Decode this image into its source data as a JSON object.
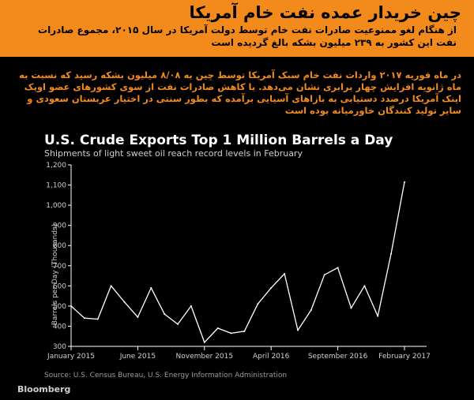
{
  "header": {
    "title": "چین خریدار عمده نفت خام آمریکا",
    "subtitle": "از هنگام لغو ممنوعیت صادرات نفت خام توسط دولت آمریکا در سال ۲۰۱۵، مجموع صادرات نفت این  کشور به ۲۳۹ میلیون بشکه بالغ گردیده است"
  },
  "description": "در ماه فوریه ۲۰۱۷ واردات نفت خام سبک آمریکا توسط چین  به ۸/۰۸ میلیون بشکه رسید که نسبت به ماه ژانویه افزایش چهار برابری نشان می‌دهد. با کاهش صادرات نفت از سوی کشورهای عضو اوپک اینک آمریکا درصدد دستیابی به بازاهای آسیایی برآمده که بطور سنتی در اختیار عربستان سعودی و سایر تولید کنندگان خاورمیانه بوده است",
  "chart_data": {
    "type": "line",
    "title": "U.S. Crude Exports Top 1 Million Barrels a Day",
    "subtitle": "Shipments of light sweet oil reach record levels in February",
    "ylabel": "Barrels per Day (Thousands)",
    "xlabel": "",
    "ylim": [
      300,
      1200
    ],
    "yticks": [
      300,
      400,
      500,
      600,
      700,
      800,
      900,
      "1,000",
      "1,100",
      "1,200"
    ],
    "xticks": [
      {
        "label": "January 2015",
        "index": 0
      },
      {
        "label": "June 2015",
        "index": 5
      },
      {
        "label": "November 2015",
        "index": 10
      },
      {
        "label": "April 2016",
        "index": 15
      },
      {
        "label": "September 2016",
        "index": 20
      },
      {
        "label": "February 2017",
        "index": 25
      }
    ],
    "x": [
      "Jan 2015",
      "Feb 2015",
      "Mar 2015",
      "Apr 2015",
      "May 2015",
      "Jun 2015",
      "Jul 2015",
      "Aug 2015",
      "Sep 2015",
      "Oct 2015",
      "Nov 2015",
      "Dec 2015",
      "Jan 2016",
      "Feb 2016",
      "Mar 2016",
      "Apr 2016",
      "May 2016",
      "Jun 2016",
      "Jul 2016",
      "Aug 2016",
      "Sep 2016",
      "Oct 2016",
      "Nov 2016",
      "Dec 2016",
      "Jan 2017",
      "Feb 2017"
    ],
    "values": [
      500,
      440,
      435,
      600,
      520,
      445,
      590,
      460,
      410,
      500,
      320,
      390,
      365,
      375,
      510,
      590,
      660,
      380,
      480,
      655,
      690,
      490,
      600,
      450,
      760,
      1115
    ],
    "grid": false,
    "colors": {
      "line": "#ffffff",
      "axis": "#ffffff",
      "text": "#cfcfcf"
    }
  },
  "source": "Source: U.S. Census Bureau, U.S. Energy Information Administration",
  "brand": "Bloomberg"
}
